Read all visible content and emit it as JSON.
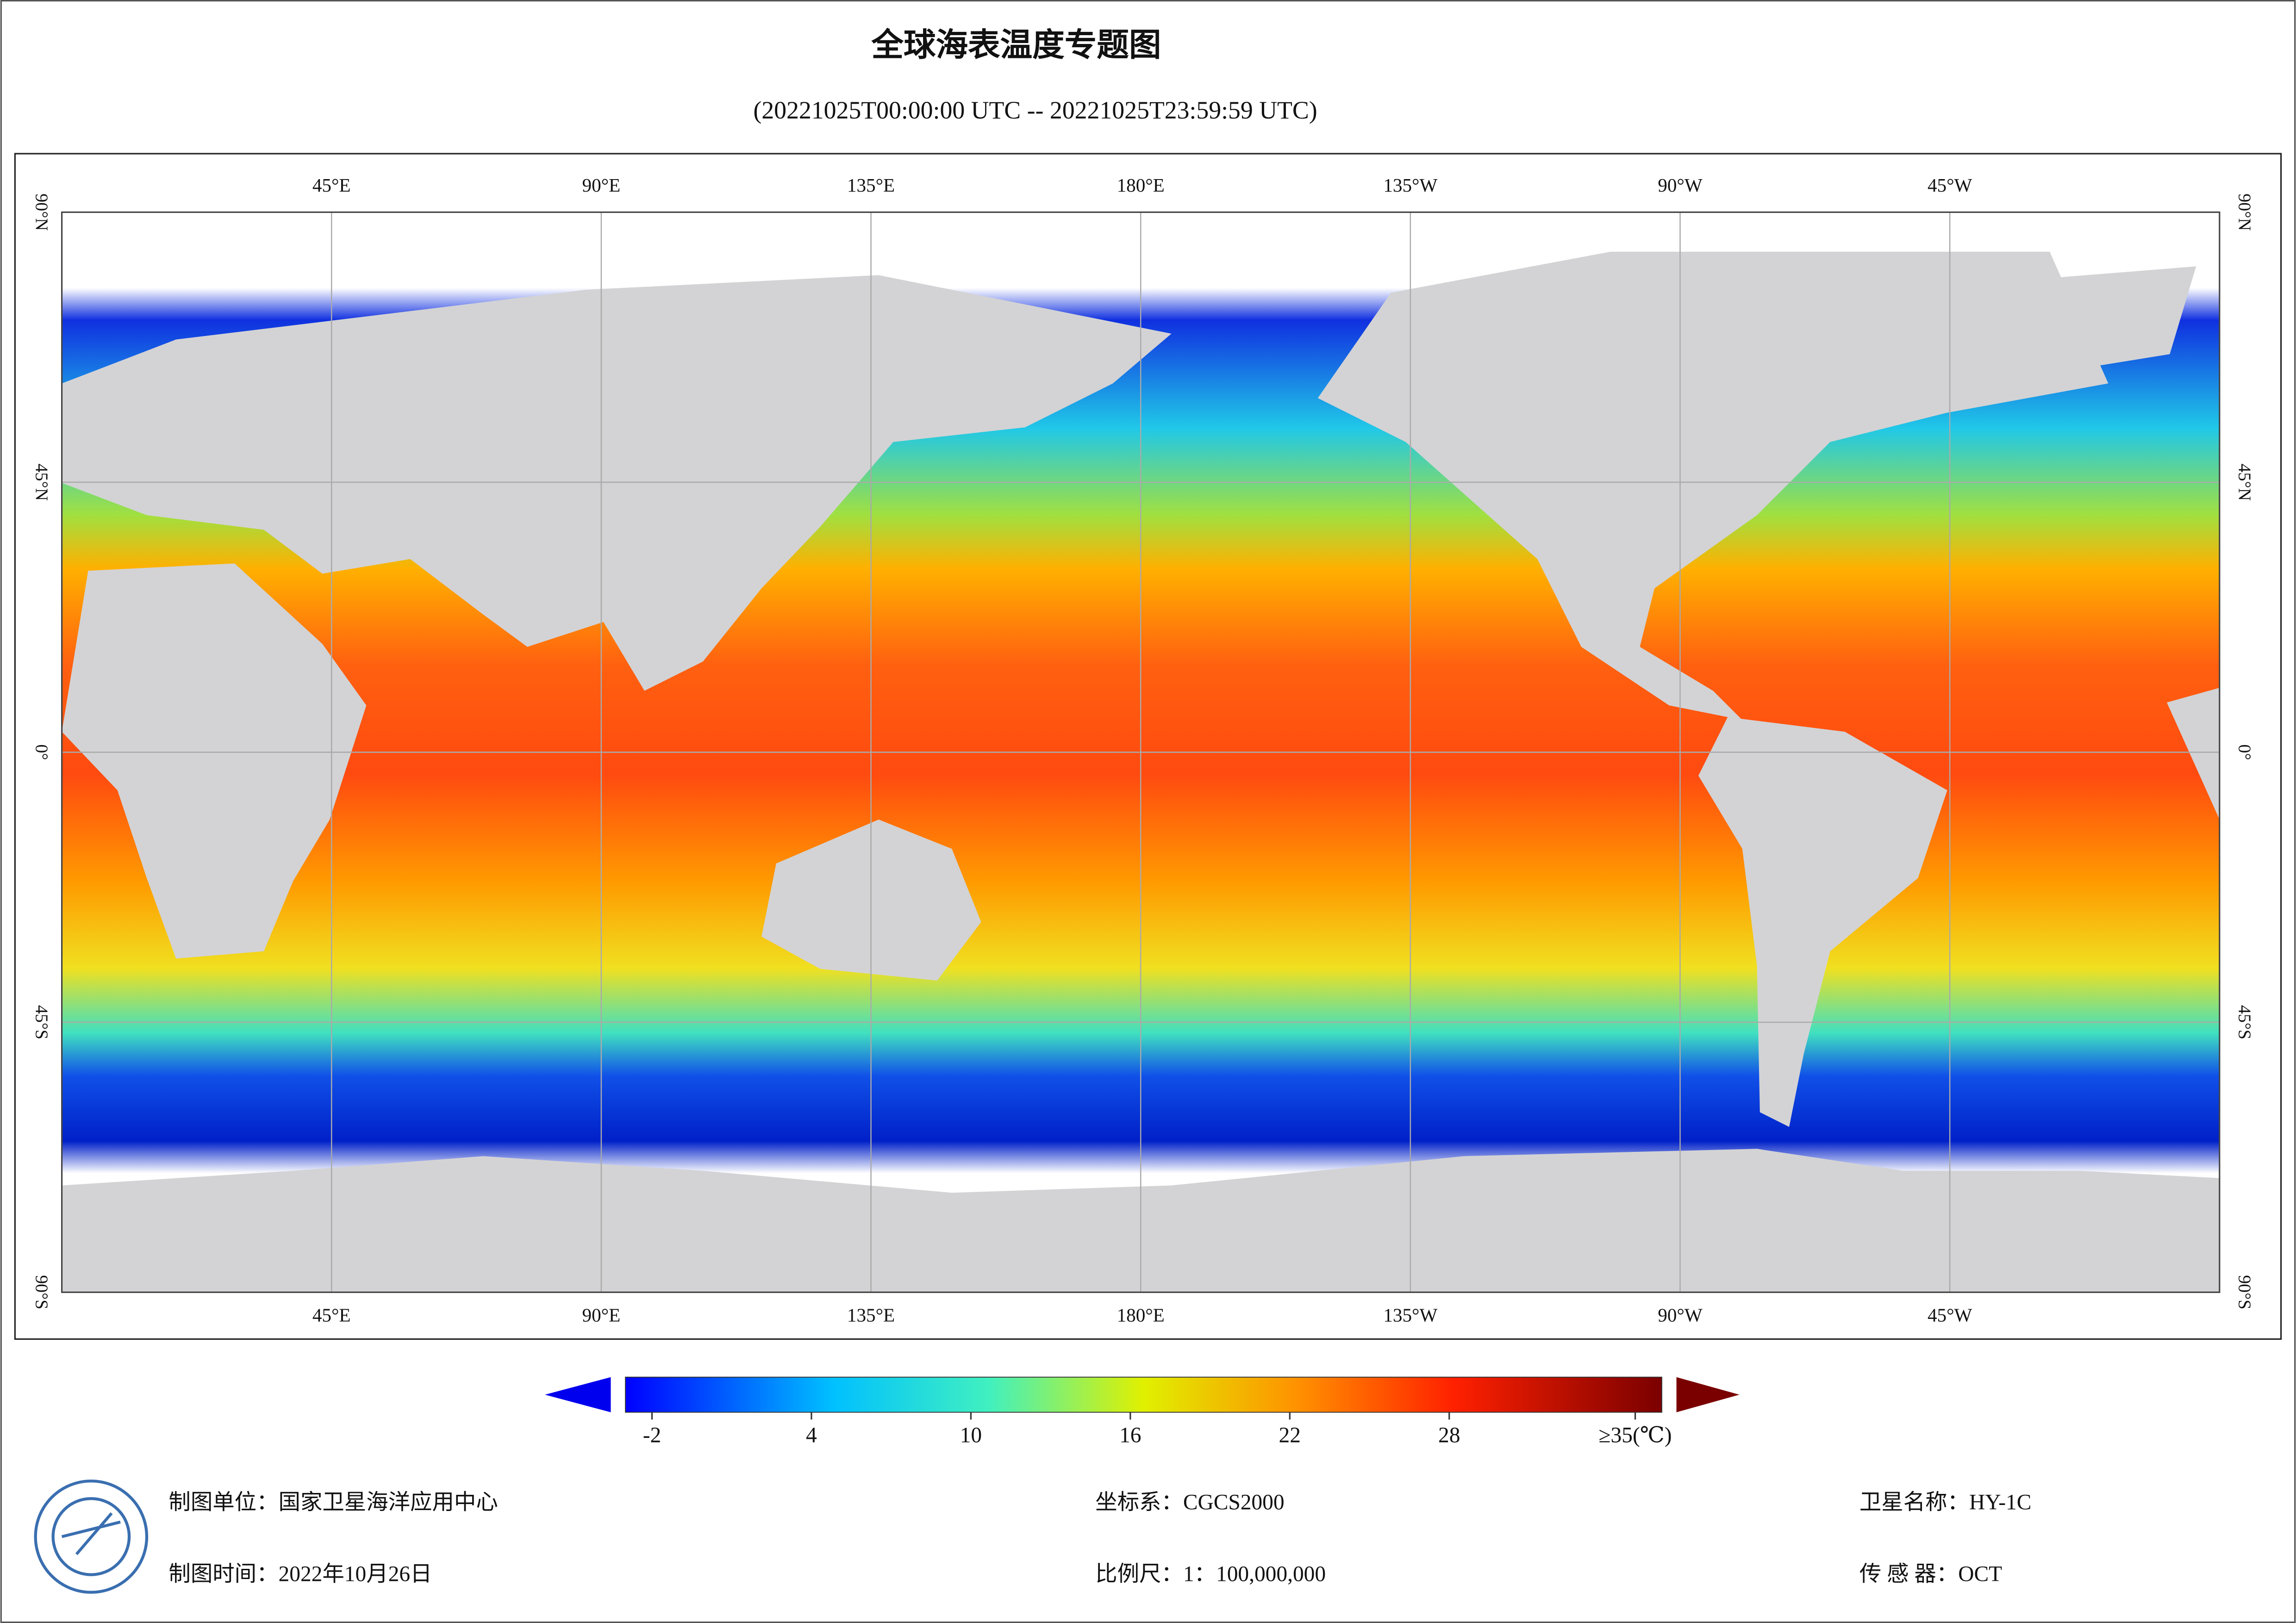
{
  "header": {
    "title": "全球海表温度专题图",
    "subtitle": "(20221025T00:00:00 UTC -- 20221025T23:59:59 UTC)"
  },
  "map": {
    "lonlim": [
      0,
      360
    ],
    "latlim": [
      -90,
      90
    ],
    "lon_ticks": [
      {
        "value": 45,
        "label": "45°E"
      },
      {
        "value": 90,
        "label": "90°E"
      },
      {
        "value": 135,
        "label": "135°E"
      },
      {
        "value": 180,
        "label": "180°E"
      },
      {
        "value": -135,
        "label": "135°W"
      },
      {
        "value": -90,
        "label": "90°W"
      },
      {
        "value": -45,
        "label": "45°W"
      }
    ],
    "lat_ticks": [
      {
        "value": 90,
        "label": "90°N"
      },
      {
        "value": 45,
        "label": "45°N"
      },
      {
        "value": 0,
        "label": "0°"
      },
      {
        "value": -45,
        "label": "45°S"
      },
      {
        "value": -90,
        "label": "90°S"
      }
    ]
  },
  "colorbar": {
    "lim": [
      -3,
      36
    ],
    "ticks": [
      -2,
      4,
      10,
      16,
      22,
      28,
      {
        "value": 35,
        "label": "≥35(℃)"
      }
    ]
  },
  "footer": {
    "unit": "制图单位：国家卫星海洋应用中心",
    "date": "制图时间：2022年10月26日",
    "crs": "坐标系：CGCS2000",
    "scale": "比例尺：1：100,000,000",
    "satellite": "卫星名称：HY-1C",
    "sensor": "传 感 器：OCT"
  }
}
